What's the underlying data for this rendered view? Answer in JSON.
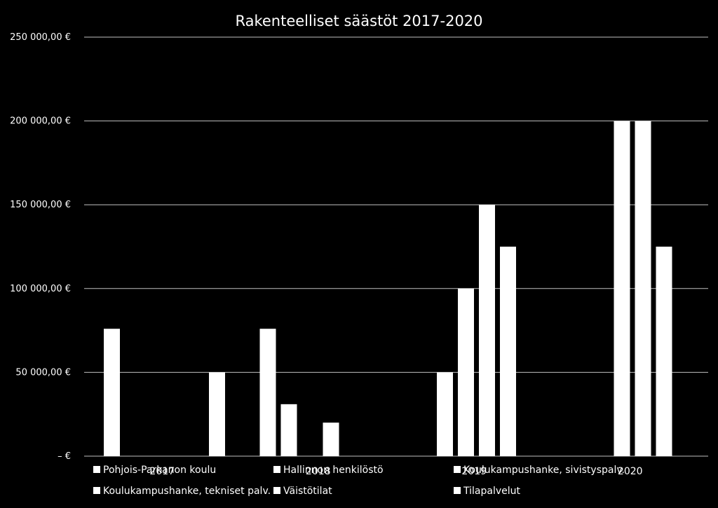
{
  "chart_data": {
    "type": "bar",
    "title": "Rakenteelliset säästöt 2017-2020",
    "xlabel": "",
    "ylabel": "",
    "categories": [
      "2017",
      "2018",
      "2019",
      "2020"
    ],
    "ylim": [
      0,
      250000
    ],
    "yticks": [
      {
        "value": 0,
        "label": "–   €"
      },
      {
        "value": 50000,
        "label": "50 000,00 €"
      },
      {
        "value": 100000,
        "label": "100 000,00 €"
      },
      {
        "value": 150000,
        "label": "150 000,00 €"
      },
      {
        "value": 200000,
        "label": "200 000,00 €"
      },
      {
        "value": 250000,
        "label": "250 000,00 €"
      }
    ],
    "grid": true,
    "legend_position": "bottom",
    "colors": {
      "background": "#000000",
      "bar": "#ffffff",
      "grid": "#bfbfbf",
      "text": "#ffffff"
    },
    "series": [
      {
        "name": "Pohjois-Parkanon koulu",
        "values": [
          76000,
          76000,
          0,
          0
        ]
      },
      {
        "name": "Hallinnon henkilöstö",
        "values": [
          0,
          31000,
          50000,
          0
        ]
      },
      {
        "name": "Koulukampushanke, sivistyspalv.",
        "values": [
          0,
          0,
          100000,
          200000
        ]
      },
      {
        "name": "Koulukampushanke, tekniset palv.",
        "values": [
          0,
          20000,
          150000,
          200000
        ]
      },
      {
        "name": "Väistötilat",
        "values": [
          0,
          0,
          125000,
          125000
        ]
      },
      {
        "name": "Tilapalvelut",
        "values": [
          50000,
          0,
          0,
          0
        ]
      }
    ]
  }
}
